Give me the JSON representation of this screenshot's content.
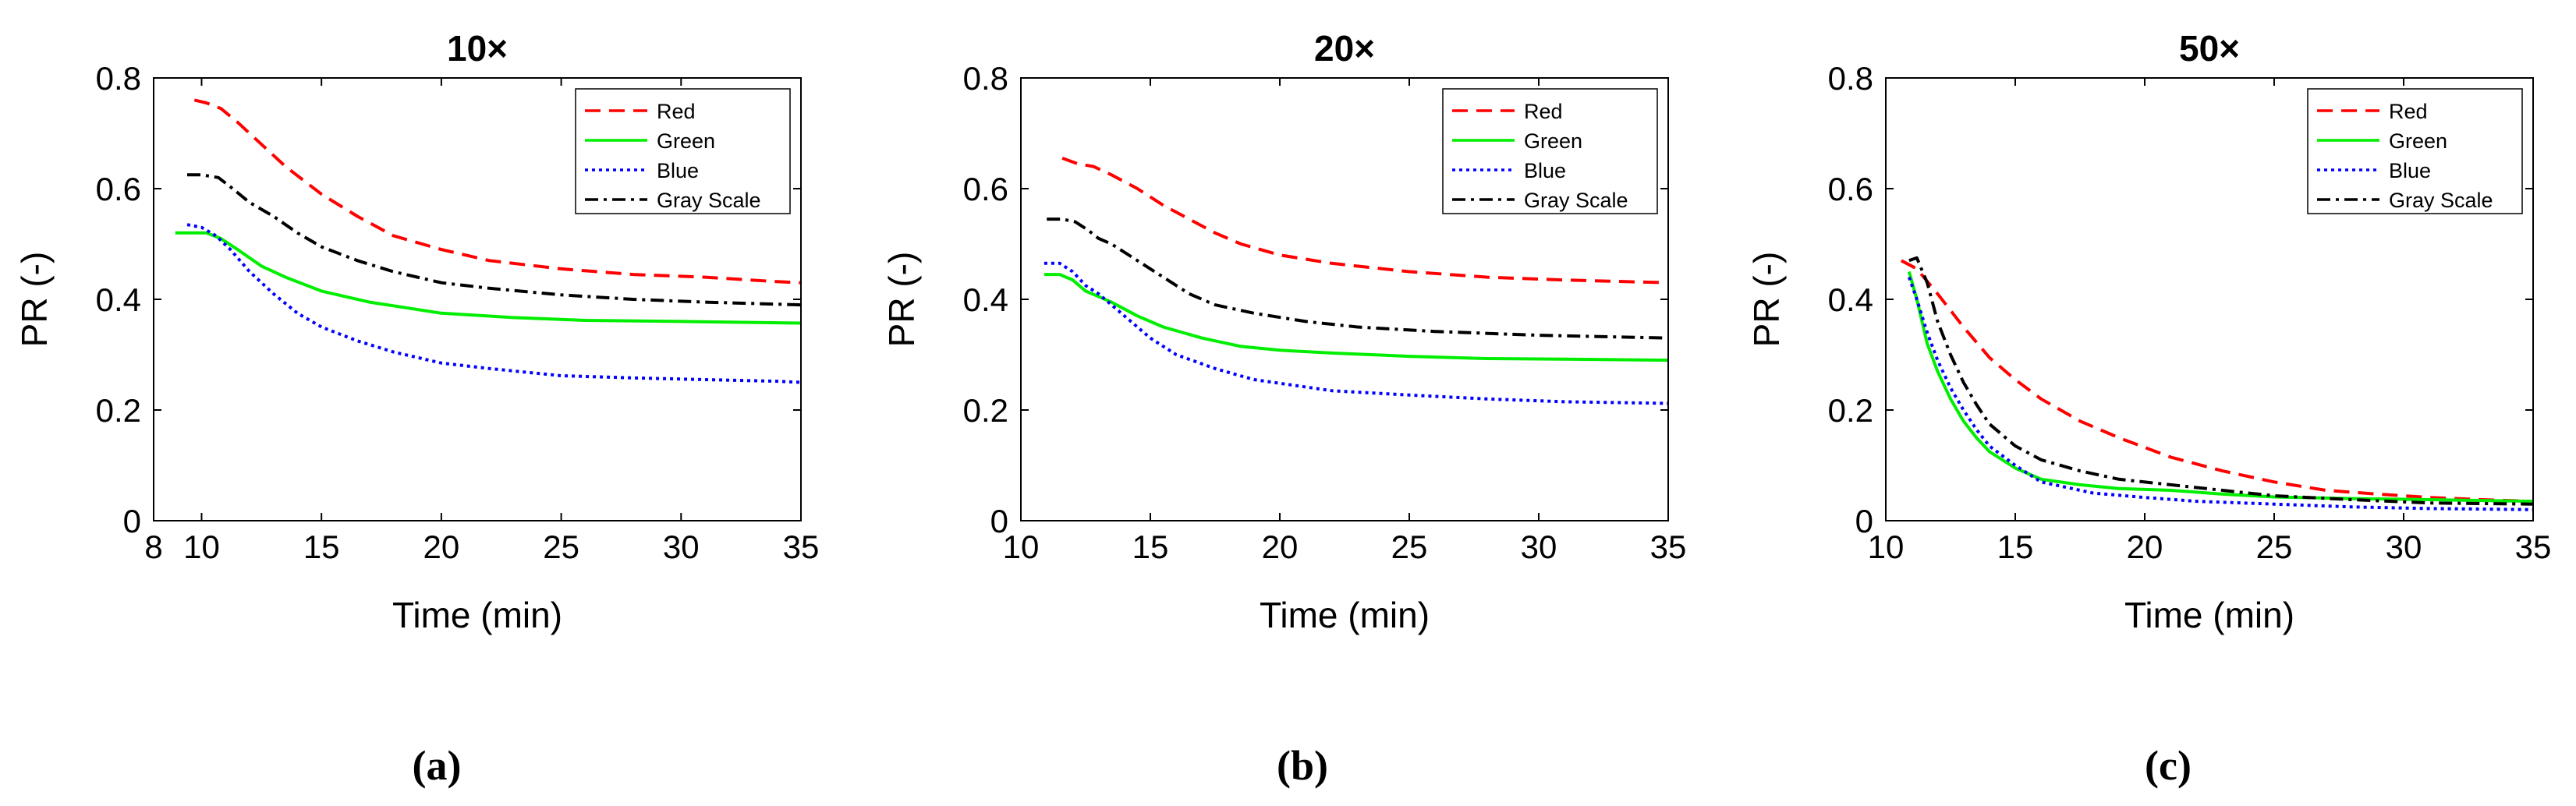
{
  "chart_data": [
    {
      "type": "line",
      "title": "10×",
      "xlabel": "Time (min)",
      "ylabel": "PR (-)",
      "caption": "(a)",
      "xlim": [
        8,
        35
      ],
      "ylim": [
        0,
        0.8
      ],
      "xticks": [
        8,
        10,
        15,
        20,
        25,
        30,
        35
      ],
      "yticks": [
        0,
        0.2,
        0.4,
        0.6,
        0.8
      ],
      "legend_position": "top-right",
      "series": [
        {
          "name": "Red",
          "color": "#ff0000",
          "dash": "dashed",
          "x": [
            9.7,
            10.2,
            10.8,
            11.5,
            12.5,
            13.5,
            15,
            16.5,
            18,
            20,
            22,
            25,
            28,
            31,
            34,
            35
          ],
          "y": [
            0.76,
            0.755,
            0.745,
            0.72,
            0.68,
            0.64,
            0.59,
            0.55,
            0.515,
            0.49,
            0.47,
            0.455,
            0.445,
            0.44,
            0.432,
            0.43
          ]
        },
        {
          "name": "Green",
          "color": "#00ee00",
          "dash": "solid",
          "x": [
            8.9,
            9.5,
            10.2,
            10.8,
            11.5,
            12.5,
            13.5,
            15,
            17,
            20,
            23,
            26,
            30,
            35
          ],
          "y": [
            0.52,
            0.52,
            0.52,
            0.51,
            0.49,
            0.46,
            0.44,
            0.415,
            0.395,
            0.375,
            0.367,
            0.362,
            0.36,
            0.357
          ]
        },
        {
          "name": "Blue",
          "color": "#0000ff",
          "dash": "dotted",
          "x": [
            9.4,
            10.0,
            10.6,
            11.2,
            12,
            13,
            14,
            15,
            16.5,
            18,
            20,
            22,
            25,
            28,
            31,
            34,
            35
          ],
          "y": [
            0.535,
            0.53,
            0.515,
            0.49,
            0.45,
            0.41,
            0.375,
            0.35,
            0.325,
            0.305,
            0.285,
            0.275,
            0.262,
            0.258,
            0.255,
            0.252,
            0.25
          ]
        },
        {
          "name": "Gray Scale",
          "color": "#000000",
          "dash": "dashdot",
          "x": [
            9.4,
            10.0,
            10.7,
            11.3,
            12,
            13,
            14,
            15,
            16.5,
            18,
            20,
            22,
            25,
            28,
            31,
            35
          ],
          "y": [
            0.625,
            0.625,
            0.62,
            0.6,
            0.575,
            0.55,
            0.52,
            0.495,
            0.47,
            0.45,
            0.43,
            0.42,
            0.408,
            0.4,
            0.395,
            0.39
          ]
        }
      ]
    },
    {
      "type": "line",
      "title": "20×",
      "xlabel": "Time (min)",
      "ylabel": "PR (-)",
      "caption": "(b)",
      "xlim": [
        10,
        35
      ],
      "ylim": [
        0,
        0.8
      ],
      "xticks": [
        10,
        15,
        20,
        25,
        30,
        35
      ],
      "yticks": [
        0,
        0.2,
        0.4,
        0.6,
        0.8
      ],
      "legend_position": "top-right",
      "series": [
        {
          "name": "Red",
          "color": "#ff0000",
          "dash": "dashed",
          "x": [
            11.6,
            12.2,
            12.8,
            13.5,
            14.5,
            15.5,
            16.5,
            17.5,
            18.5,
            20,
            22,
            25,
            28,
            31,
            35
          ],
          "y": [
            0.655,
            0.645,
            0.64,
            0.625,
            0.6,
            0.57,
            0.545,
            0.52,
            0.5,
            0.48,
            0.465,
            0.45,
            0.44,
            0.435,
            0.43
          ]
        },
        {
          "name": "Green",
          "color": "#00ee00",
          "dash": "solid",
          "x": [
            10.9,
            11.5,
            12,
            12.5,
            13,
            13.5,
            14.5,
            15.5,
            17,
            18.5,
            20,
            22,
            25,
            28,
            31,
            35
          ],
          "y": [
            0.445,
            0.445,
            0.435,
            0.415,
            0.405,
            0.395,
            0.37,
            0.35,
            0.33,
            0.315,
            0.308,
            0.303,
            0.297,
            0.293,
            0.292,
            0.29
          ]
        },
        {
          "name": "Blue",
          "color": "#0000ff",
          "dash": "dotted",
          "x": [
            10.9,
            11.5,
            12,
            12.5,
            13,
            13.5,
            14,
            15,
            16,
            17.5,
            19,
            20.5,
            22,
            25,
            28,
            31,
            35
          ],
          "y": [
            0.465,
            0.465,
            0.45,
            0.425,
            0.41,
            0.39,
            0.37,
            0.33,
            0.3,
            0.275,
            0.255,
            0.245,
            0.235,
            0.227,
            0.22,
            0.215,
            0.212
          ]
        },
        {
          "name": "Gray Scale",
          "color": "#000000",
          "dash": "dashdot",
          "x": [
            11.0,
            11.6,
            12.1,
            12.6,
            13,
            13.5,
            14.5,
            15.5,
            16.5,
            17.5,
            19,
            21,
            23,
            26,
            30,
            35
          ],
          "y": [
            0.545,
            0.545,
            0.54,
            0.525,
            0.51,
            0.5,
            0.47,
            0.44,
            0.41,
            0.39,
            0.375,
            0.36,
            0.35,
            0.342,
            0.335,
            0.33
          ]
        }
      ]
    },
    {
      "type": "line",
      "title": "50×",
      "xlabel": "Time (min)",
      "ylabel": "PR (-)",
      "caption": "(c)",
      "xlim": [
        10,
        35
      ],
      "ylim": [
        0,
        0.8
      ],
      "xticks": [
        10,
        15,
        20,
        25,
        30,
        35
      ],
      "yticks": [
        0,
        0.2,
        0.4,
        0.6,
        0.8
      ],
      "legend_position": "top-right",
      "series": [
        {
          "name": "Red",
          "color": "#ff0000",
          "dash": "dashed",
          "x": [
            10.6,
            11.2,
            12,
            13,
            14,
            15,
            16,
            17.5,
            19,
            21,
            23,
            25,
            27,
            29,
            31,
            33,
            35
          ],
          "y": [
            0.47,
            0.455,
            0.41,
            0.35,
            0.295,
            0.255,
            0.22,
            0.18,
            0.15,
            0.115,
            0.09,
            0.07,
            0.055,
            0.048,
            0.042,
            0.038,
            0.035
          ]
        },
        {
          "name": "Green",
          "color": "#00ee00",
          "dash": "solid",
          "x": [
            10.9,
            11.2,
            11.6,
            12,
            12.5,
            13,
            13.5,
            14,
            15,
            16,
            17.5,
            19,
            21,
            23,
            25,
            28,
            31,
            35
          ],
          "y": [
            0.45,
            0.4,
            0.32,
            0.27,
            0.22,
            0.18,
            0.15,
            0.125,
            0.095,
            0.075,
            0.065,
            0.058,
            0.055,
            0.048,
            0.043,
            0.04,
            0.038,
            0.035
          ]
        },
        {
          "name": "Blue",
          "color": "#0000ff",
          "dash": "dotted",
          "x": [
            10.9,
            11.2,
            11.6,
            12,
            12.5,
            13,
            13.5,
            14,
            15,
            16,
            18,
            20,
            22,
            25,
            28,
            31,
            35
          ],
          "y": [
            0.44,
            0.4,
            0.34,
            0.29,
            0.24,
            0.2,
            0.165,
            0.135,
            0.1,
            0.07,
            0.05,
            0.042,
            0.035,
            0.03,
            0.025,
            0.022,
            0.02
          ]
        },
        {
          "name": "Gray Scale",
          "color": "#000000",
          "dash": "dashdot",
          "x": [
            10.9,
            11.2,
            11.6,
            12,
            12.5,
            13,
            13.5,
            14,
            15,
            16,
            17.5,
            19,
            21,
            23,
            25,
            28,
            31,
            35
          ],
          "y": [
            0.47,
            0.475,
            0.43,
            0.36,
            0.3,
            0.25,
            0.21,
            0.175,
            0.135,
            0.11,
            0.09,
            0.075,
            0.065,
            0.055,
            0.045,
            0.038,
            0.032,
            0.03
          ]
        }
      ]
    }
  ]
}
